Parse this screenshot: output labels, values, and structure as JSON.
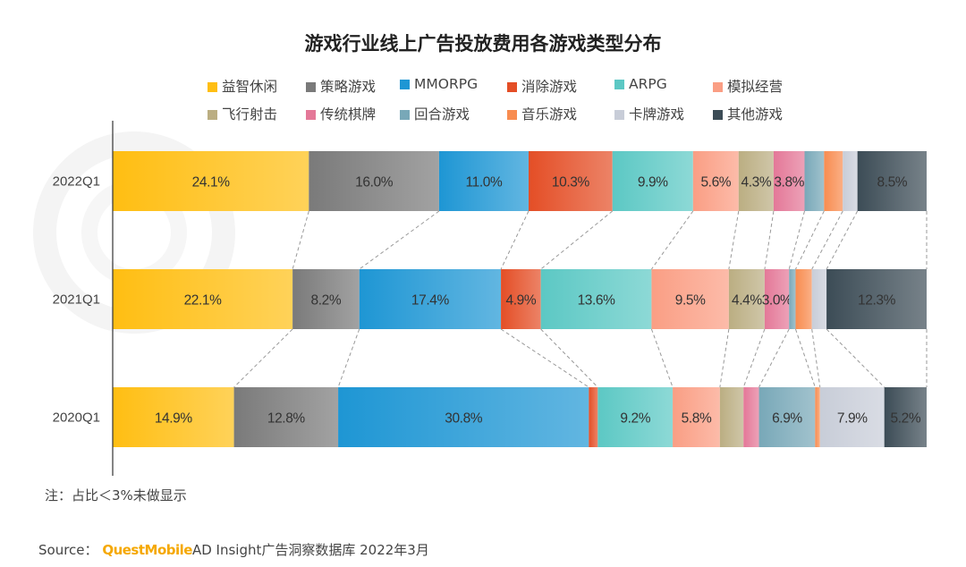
{
  "watermark": "QUESTMOBILE",
  "chart_data": {
    "type": "bar",
    "orientation": "horizontal",
    "stacked": true,
    "normalized": true,
    "title": "游戏行业线上广告投放费用各游戏类型分布",
    "categories": [
      "2022Q1",
      "2021Q1",
      "2020Q1"
    ],
    "xlim": [
      0,
      100
    ],
    "grid": false,
    "legend_position": "top",
    "label_threshold": 3,
    "series": [
      {
        "name": "益智休闲",
        "color": "#FFBE12",
        "values": [
          24.1,
          22.1,
          14.9
        ]
      },
      {
        "name": "策略游戏",
        "color": "#7A7A7A",
        "values": [
          16.0,
          8.2,
          12.8
        ]
      },
      {
        "name": "MMORPG",
        "color": "#1E96D4",
        "values": [
          11.0,
          17.4,
          30.8
        ]
      },
      {
        "name": "消除游戏",
        "color": "#E44E26",
        "values": [
          10.3,
          4.9,
          1.1
        ]
      },
      {
        "name": "ARPG",
        "color": "#5CC8C4",
        "values": [
          9.9,
          13.6,
          9.2
        ]
      },
      {
        "name": "模拟经营",
        "color": "#FA9E84",
        "values": [
          5.6,
          9.5,
          5.8
        ]
      },
      {
        "name": "飞行射击",
        "color": "#BBAE82",
        "values": [
          4.3,
          4.4,
          2.9
        ]
      },
      {
        "name": "传统棋牌",
        "color": "#E47898",
        "values": [
          3.8,
          3.0,
          1.9
        ]
      },
      {
        "name": "回合游戏",
        "color": "#78A8B8",
        "values": [
          2.4,
          0.8,
          6.9
        ]
      },
      {
        "name": "音乐游戏",
        "color": "#F88C50",
        "values": [
          2.3,
          2.0,
          0.6
        ]
      },
      {
        "name": "卡牌游戏",
        "color": "#C8CDD8",
        "values": [
          1.8,
          1.8,
          7.9
        ]
      },
      {
        "name": "其他游戏",
        "color": "#3C4C56",
        "values": [
          8.5,
          12.3,
          5.2
        ]
      }
    ]
  },
  "note": "注：占比＜3%未做显示",
  "source": {
    "label": "Source：",
    "brand": "QuestMobile",
    "text": "AD Insight广告洞察数据库 2022年3月"
  }
}
